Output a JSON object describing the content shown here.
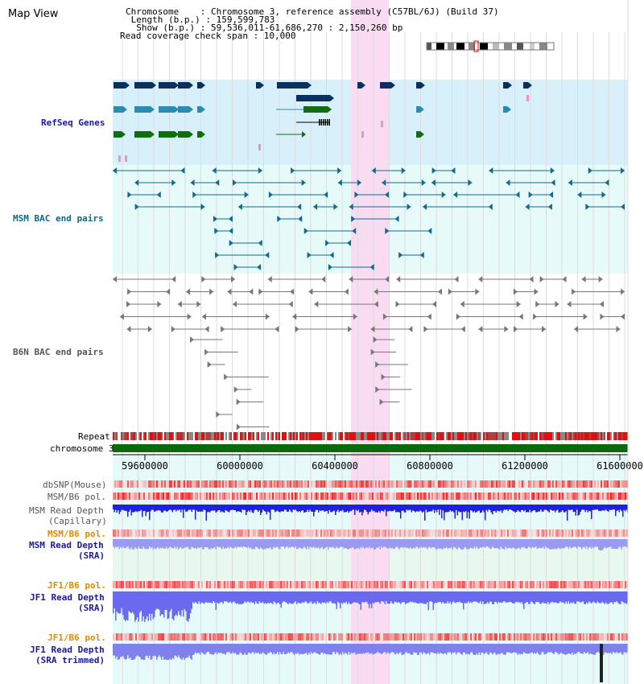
{
  "title": "Map View",
  "info": {
    "chromosome": "Chromosome    : Chromosome 3, reference assembly (C57BL/6J) (Build 37)",
    "length": " Length (b.p.) : 159,599,783",
    "show": "  Show (b.p.) : 59,536,011-61,686,270 : 2,150,260 bp",
    "coverage": "Read coverage check span : 10,000"
  },
  "tracks": {
    "refseq": "RefSeq Genes",
    "msm_bac": "MSM BAC end pairs",
    "b6n_bac": "B6N BAC end pairs",
    "repeat": "Repeat",
    "chromosome": "chromosome 3",
    "dbsnp": "dbSNP(Mouse)",
    "msm_b6_pol": "MSM/B6 pol.",
    "msm_read_depth_cap": "MSM Read Depth",
    "capillary": "(Capillary)",
    "msm_b6_pol_2": "MSM/B6 pol.",
    "msm_read_depth_sra": "MSM Read Depth",
    "sra": "(SRA)",
    "jf1_b6_pol": "JF1/B6 pol.",
    "jf1_read_depth": "JF1 Read Depth",
    "sra2": "(SRA)",
    "jf1_b6_pol_2": "JF1/B6 pol.",
    "jf1_read_depth_trim": "JF1 Read Depth",
    "sra_trimmed": "(SRA trimmed)"
  },
  "axis": {
    "ticks": [
      "59600000",
      "60000000",
      "60400000",
      "60800000",
      "61200000",
      "61600000"
    ]
  },
  "colors": {
    "refseq_bg": "#d8f0fa",
    "msm_bac_bg": "#e6fafa",
    "depth_bg": "#e8f8ee",
    "highlight": "#f9dcf2",
    "gene_navy": "#0b3060",
    "gene_teal": "#2a8cb0",
    "gene_green": "#106e10",
    "bac_blue": "#106a90",
    "bac_gray": "#777777",
    "chrom_green": "#0b6a0b",
    "depth_blue": "#2020e0",
    "label_navy": "#1a1a9a",
    "label_teal": "#0b6a8a",
    "label_orange": "#e08a00"
  }
}
